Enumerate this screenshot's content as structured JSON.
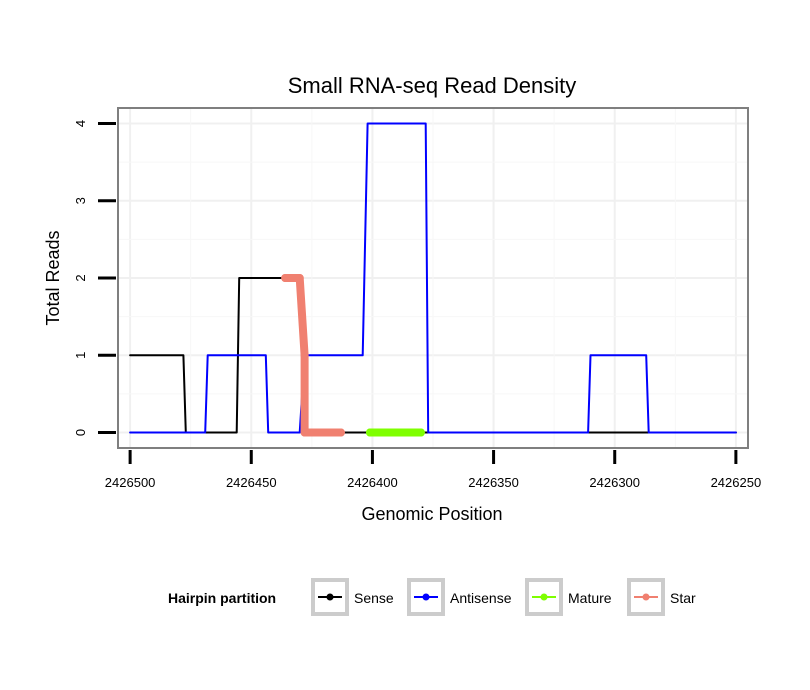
{
  "chart_data": {
    "type": "line",
    "title": "Small RNA-seq Read Density",
    "xlabel": "Genomic Position",
    "ylabel": "Total Reads",
    "x_reversed": true,
    "xlim": [
      2426505,
      2426245
    ],
    "ylim": [
      -0.2,
      4.2
    ],
    "xticks": [
      2426500,
      2426450,
      2426400,
      2426350,
      2426300,
      2426250
    ],
    "xtick_labels": [
      "2426500",
      "2426450",
      "2426400",
      "2426350",
      "2426300",
      "2426250"
    ],
    "yticks": [
      0,
      1,
      2,
      3,
      4
    ],
    "ytick_labels": [
      "0",
      "1",
      "2",
      "3",
      "4"
    ],
    "grid": true,
    "legend": {
      "title": "Hairpin partition",
      "position": "bottom",
      "entries": [
        "Sense",
        "Antisense",
        "Mature",
        "Star"
      ]
    },
    "series": [
      {
        "name": "Sense",
        "color": "#000000",
        "points": [
          [
            2426500,
            1
          ],
          [
            2426478,
            1
          ],
          [
            2426477,
            0
          ],
          [
            2426456,
            0
          ],
          [
            2426455,
            2
          ],
          [
            2426430,
            2
          ],
          [
            2426427,
            0
          ],
          [
            2426250,
            0
          ]
        ]
      },
      {
        "name": "Antisense",
        "color": "#0000ff",
        "points": [
          [
            2426500,
            0
          ],
          [
            2426469,
            0
          ],
          [
            2426468,
            1
          ],
          [
            2426444,
            1
          ],
          [
            2426443,
            0
          ],
          [
            2426430,
            0
          ],
          [
            2426428,
            1
          ],
          [
            2426404,
            1
          ],
          [
            2426402,
            4
          ],
          [
            2426378,
            4
          ],
          [
            2426377,
            0
          ],
          [
            2426311,
            0
          ],
          [
            2426310,
            1
          ],
          [
            2426287,
            1
          ],
          [
            2426286,
            0
          ],
          [
            2426250,
            0
          ]
        ]
      },
      {
        "name": "Mature",
        "color": "#7fff00",
        "points": [
          [
            2426401,
            0
          ],
          [
            2426380,
            0
          ]
        ]
      },
      {
        "name": "Star",
        "color": "#f08070",
        "points": [
          [
            2426436,
            2
          ],
          [
            2426430,
            2
          ],
          [
            2426428,
            1
          ],
          [
            2426428,
            0
          ],
          [
            2426413,
            0
          ]
        ]
      }
    ]
  }
}
